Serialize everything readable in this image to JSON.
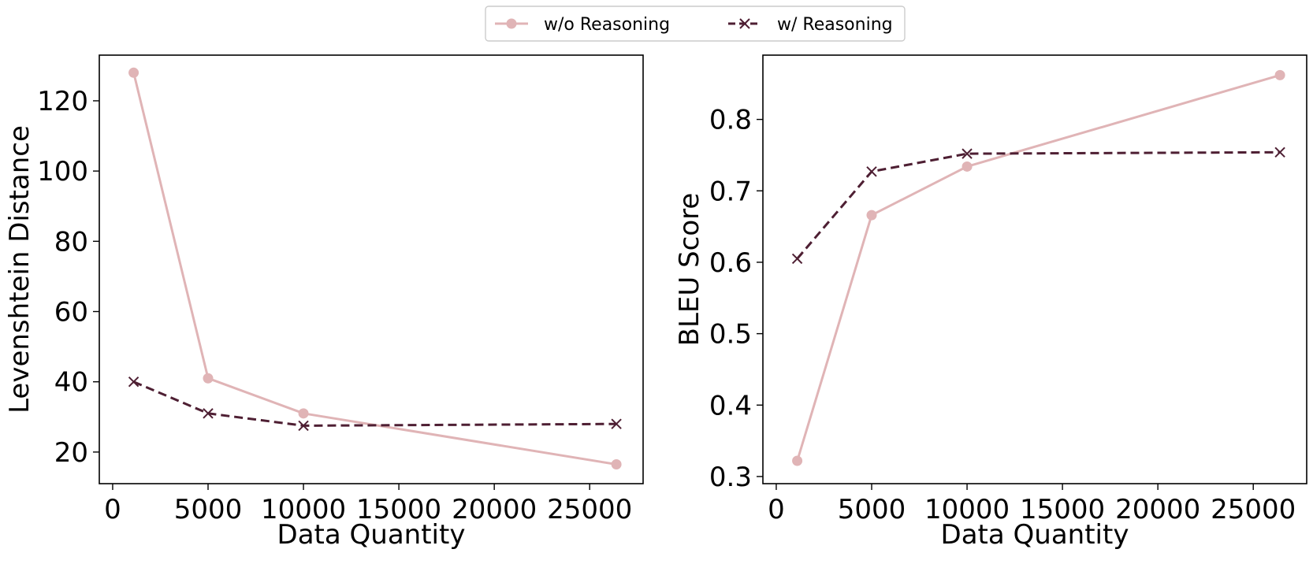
{
  "legend": {
    "placement": "top-center",
    "entries": [
      {
        "label": "w/o Reasoning",
        "color": "#e0b4b6",
        "marker": "circle",
        "line": "solid"
      },
      {
        "label": "w/ Reasoning",
        "color": "#4e1f33",
        "marker": "x",
        "line": "dashed"
      }
    ]
  },
  "chart_data": [
    {
      "type": "line",
      "title": "",
      "xlabel": "Data Quantity",
      "ylabel": "Levenshtein Distance",
      "xlim": [
        -700,
        27800
      ],
      "ylim": [
        11,
        133
      ],
      "xticks": [
        0,
        5000,
        10000,
        15000,
        20000,
        25000
      ],
      "yticks": [
        20,
        40,
        60,
        80,
        100,
        120
      ],
      "x": [
        1100,
        5000,
        10000,
        26400
      ],
      "grid": false,
      "series": [
        {
          "name": "w/o Reasoning",
          "values": [
            128,
            41,
            31,
            16.5
          ],
          "color": "#e0b4b6",
          "marker": "circle",
          "line": "solid"
        },
        {
          "name": "w/ Reasoning",
          "values": [
            40,
            31,
            27.5,
            28
          ],
          "color": "#4e1f33",
          "marker": "x",
          "line": "dashed"
        }
      ]
    },
    {
      "type": "line",
      "title": "",
      "xlabel": "Data Quantity",
      "ylabel": "BLEU Score",
      "xlim": [
        -700,
        27800
      ],
      "ylim": [
        0.29,
        0.89
      ],
      "xticks": [
        0,
        5000,
        10000,
        15000,
        20000,
        25000
      ],
      "yticks": [
        0.3,
        0.4,
        0.5,
        0.6,
        0.7,
        0.8
      ],
      "x": [
        1100,
        5000,
        10000,
        26400
      ],
      "grid": false,
      "series": [
        {
          "name": "w/o Reasoning",
          "values": [
            0.322,
            0.666,
            0.734,
            0.862
          ],
          "color": "#e0b4b6",
          "marker": "circle",
          "line": "solid"
        },
        {
          "name": "w/ Reasoning",
          "values": [
            0.605,
            0.727,
            0.752,
            0.754
          ],
          "color": "#4e1f33",
          "marker": "x",
          "line": "dashed"
        }
      ]
    }
  ]
}
